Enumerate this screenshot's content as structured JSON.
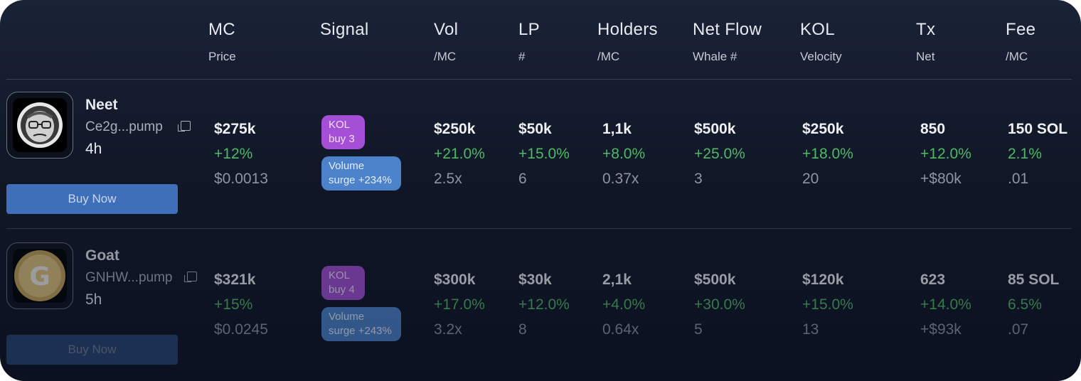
{
  "headers": [
    {
      "title": "MC",
      "sub": "Price"
    },
    {
      "title": "Signal",
      "sub": ""
    },
    {
      "title": "Vol",
      "sub": "/MC"
    },
    {
      "title": "LP",
      "sub": "#"
    },
    {
      "title": "Holders",
      "sub": "/MC"
    },
    {
      "title": "Net Flow",
      "sub": "Whale #"
    },
    {
      "title": "KOL",
      "sub": "Velocity"
    },
    {
      "title": "Tx",
      "sub": "Net"
    },
    {
      "title": "Fee",
      "sub": "/MC"
    }
  ],
  "rows": [
    {
      "name": "Neet",
      "address": "Ce2g...pump",
      "age": "4h",
      "buy_label": "Buy Now",
      "mc": {
        "value": "$275k",
        "change": "+12%",
        "price": "$0.0013"
      },
      "signals": {
        "kol": [
          "KOL",
          "buy 3"
        ],
        "volume": [
          "Volume",
          "surge +234%"
        ]
      },
      "vol": [
        "$250k",
        "+21.0%",
        "2.5x"
      ],
      "lp": [
        "$50k",
        "+15.0%",
        "6"
      ],
      "holders": [
        "1,1k",
        "+8.0%",
        "0.37x"
      ],
      "netflow": [
        "$500k",
        "+25.0%",
        "3"
      ],
      "kol": [
        "$250k",
        "+18.0%",
        "20"
      ],
      "tx": [
        "850",
        "+12.0%",
        "+$80k"
      ],
      "fee": [
        "150 SOL",
        "2.1%",
        ".01"
      ]
    },
    {
      "name": "Goat",
      "address": "GNHW...pump",
      "age": "5h",
      "buy_label": "Buy Now",
      "mc": {
        "value": "$321k",
        "change": "+15%",
        "price": "$0.0245"
      },
      "signals": {
        "kol": [
          "KOL",
          "buy 4"
        ],
        "volume": [
          "Volume",
          "surge +243%"
        ]
      },
      "vol": [
        "$300k",
        "+17.0%",
        "3.2x"
      ],
      "lp": [
        "$30k",
        "+12.0%",
        "8"
      ],
      "holders": [
        "2,1k",
        "+4.0%",
        "0.64x"
      ],
      "netflow": [
        "$500k",
        "+30.0%",
        "5"
      ],
      "kol": [
        "$120k",
        "+15.0%",
        "13"
      ],
      "tx": [
        "623",
        "+14.0%",
        "+$93k"
      ],
      "fee": [
        "85 SOL",
        "6.5%",
        ".07"
      ]
    }
  ],
  "icons": {
    "copy": "copy-icon",
    "avatar1": "neet-token-avatar",
    "avatar2": "goat-token-avatar"
  },
  "colors": {
    "positive": "#4fb866",
    "accent_button": "#3f6fb8",
    "kol_badge": "#a44fd6",
    "volume_badge": "#4b82c9"
  }
}
